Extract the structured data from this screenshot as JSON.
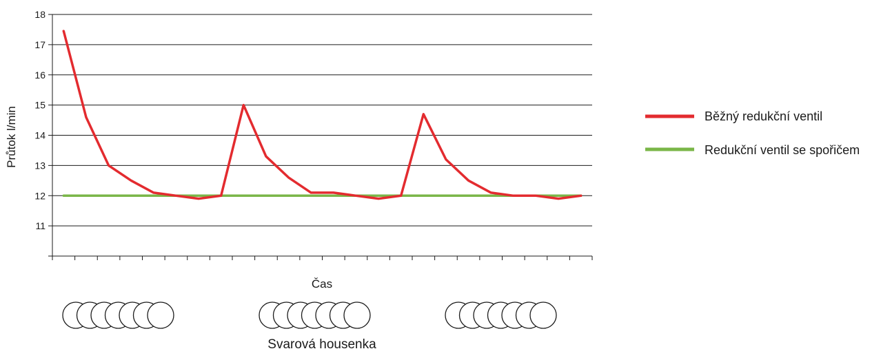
{
  "chart_data": {
    "type": "line",
    "title": "",
    "xlabel": "Čas",
    "ylabel": "Průtok l/min",
    "ylim": [
      10,
      18
    ],
    "yticks": [
      11,
      12,
      13,
      14,
      15,
      16,
      17,
      18
    ],
    "grid": true,
    "legend_placement": "right",
    "x": [
      1,
      2,
      3,
      4,
      5,
      6,
      7,
      8,
      9,
      10,
      11,
      12,
      13,
      14,
      15,
      16,
      17,
      18,
      19,
      20,
      21,
      22,
      23,
      24
    ],
    "series": [
      {
        "name": "Běžný redukční ventil",
        "color": "#e32b2f",
        "values": [
          17.45,
          14.6,
          13.0,
          12.5,
          12.1,
          12.0,
          11.9,
          12.0,
          15.0,
          13.3,
          12.6,
          12.1,
          12.1,
          12.0,
          11.9,
          12.0,
          14.7,
          13.2,
          12.5,
          12.1,
          12.0,
          12.0,
          11.9,
          12.0
        ]
      },
      {
        "name": "Redukční ventil se spořičem",
        "color": "#7ab648",
        "values": [
          12,
          12,
          12,
          12,
          12,
          12,
          12,
          12,
          12,
          12,
          12,
          12,
          12,
          12,
          12,
          12,
          12,
          12,
          12,
          12,
          12,
          12,
          12,
          12
        ]
      }
    ]
  },
  "weld_bead": {
    "label": "Svarová housenka",
    "groups": 3,
    "circles_per_group": 7
  }
}
